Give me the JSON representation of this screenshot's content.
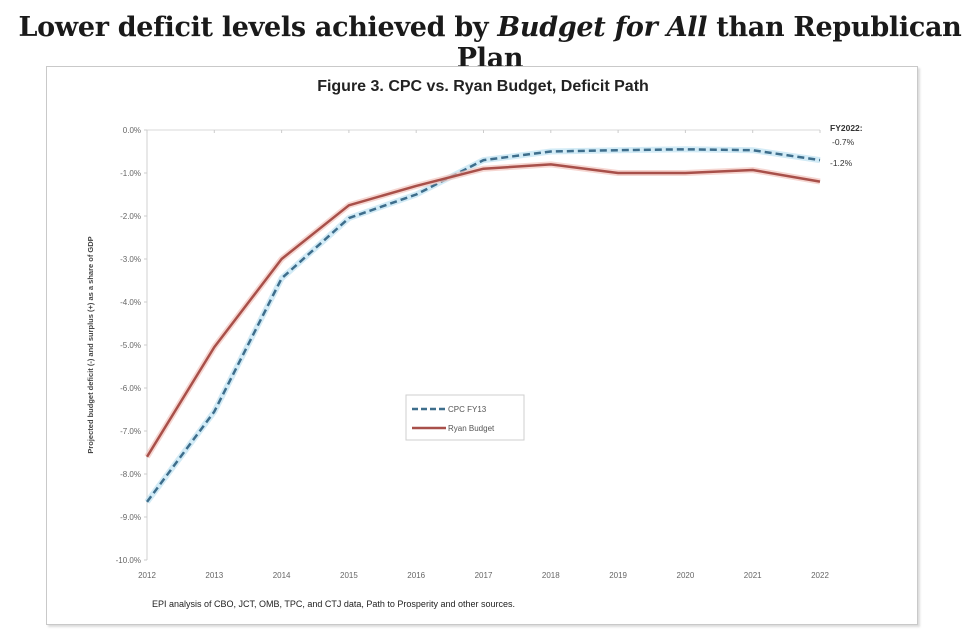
{
  "headline": {
    "part1": "Lower deficit levels achieved by ",
    "emphasis": "Budget for All",
    "part2": " than Republican Plan"
  },
  "chart_data": {
    "type": "line",
    "title": "Figure 3. CPC vs. Ryan Budget, Deficit Path",
    "xlabel": "",
    "ylabel": "Projected budget deficit (-) and surplus (+) as a share of GDP",
    "x": [
      "2012",
      "2013",
      "2014",
      "2015",
      "2016",
      "2017",
      "2018",
      "2019",
      "2020",
      "2021",
      "2022"
    ],
    "ylim": [
      -10.0,
      0.0
    ],
    "yticks": [
      "0.0%",
      "-1.0%",
      "-2.0%",
      "-3.0%",
      "-4.0%",
      "-5.0%",
      "-6.0%",
      "-7.0%",
      "-8.0%",
      "-9.0%",
      "-10.0%"
    ],
    "ytick_values": [
      0,
      -1,
      -2,
      -3,
      -4,
      -5,
      -6,
      -7,
      -8,
      -9,
      -10
    ],
    "grid": false,
    "legend_position": "center",
    "series": [
      {
        "name": "CPC FY13",
        "style": "dashed",
        "color": "#3e6e8c",
        "glow": "#bfe3f2",
        "values": [
          -8.65,
          -6.55,
          -3.45,
          -2.05,
          -1.5,
          -0.7,
          -0.5,
          -0.47,
          -0.45,
          -0.47,
          -0.7
        ]
      },
      {
        "name": "Ryan Budget",
        "style": "solid",
        "color": "#a8504a",
        "glow": "#f2c4bd",
        "values": [
          -7.6,
          -5.05,
          -3.0,
          -1.75,
          -1.3,
          -0.9,
          -0.8,
          -1.0,
          -1.0,
          -0.93,
          -1.2
        ]
      }
    ],
    "annotations": {
      "heading": "FY2022:",
      "cpc_value": "-0.7%",
      "ryan_value": "-1.2%"
    },
    "source": "EPI analysis of CBO, JCT, OMB, TPC, and CTJ data, Path to Prosperity and other sources."
  }
}
